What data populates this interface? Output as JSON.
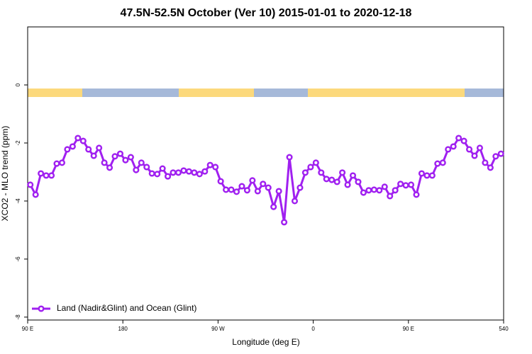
{
  "chart_data": {
    "type": "line",
    "title": "47.5N-52.5N October (Ver 10)   2015-01-01 to 2020-12-18",
    "x_label": "Longitude (deg E)",
    "y_label": "XCO2 - MLO trend (ppm)",
    "x": [
      92.5,
      97.5,
      102.5,
      107.5,
      112.5,
      117.5,
      122.5,
      127.5,
      132.5,
      137.5,
      142.5,
      147.5,
      152.5,
      157.5,
      162.5,
      167.5,
      172.5,
      177.5,
      182.5,
      187.5,
      192.5,
      197.5,
      202.5,
      207.5,
      212.5,
      217.5,
      222.5,
      227.5,
      232.5,
      237.5,
      242.5,
      247.5,
      252.5,
      257.5,
      262.5,
      267.5,
      272.5,
      277.5,
      282.5,
      287.5,
      292.5,
      297.5,
      302.5,
      307.5,
      312.5,
      317.5,
      322.5,
      327.5,
      332.5,
      337.5,
      342.5,
      347.5,
      352.5,
      357.5,
      362.5,
      367.5,
      372.5,
      377.5,
      382.5,
      387.5,
      392.5,
      397.5,
      402.5,
      407.5,
      412.5,
      417.5,
      422.5,
      427.5,
      432.5,
      437.5,
      442.5,
      447.5,
      452.5,
      457.5,
      462.5,
      467.5,
      472.5,
      477.5,
      482.5,
      487.5,
      492.5,
      497.5,
      502.5,
      507.5,
      512.5,
      517.5,
      522.5,
      527.5,
      532.5,
      537.5
    ],
    "series": [
      {
        "name": "Land (Nadir&Glint) and Ocean (Glint)",
        "color": "#a020f0",
        "values": [
          -3.44,
          -3.78,
          -3.05,
          -3.12,
          -3.12,
          -2.71,
          -2.68,
          -2.22,
          -2.12,
          -1.83,
          -1.93,
          -2.22,
          -2.44,
          -2.17,
          -2.68,
          -2.85,
          -2.46,
          -2.37,
          -2.59,
          -2.49,
          -2.93,
          -2.68,
          -2.83,
          -3.05,
          -3.07,
          -2.88,
          -3.15,
          -3.02,
          -3.02,
          -2.95,
          -2.98,
          -3.02,
          -3.07,
          -2.98,
          -2.76,
          -2.83,
          -3.32,
          -3.61,
          -3.61,
          -3.68,
          -3.49,
          -3.63,
          -3.29,
          -3.66,
          -3.41,
          -3.54,
          -4.2,
          -3.66,
          -4.73,
          -2.49,
          -4.0,
          -3.54,
          -3.02,
          -2.83,
          -2.68,
          -3.02,
          -3.24,
          -3.27,
          -3.34,
          -3.02,
          -3.44,
          -3.12,
          -3.34,
          -3.71,
          -3.63,
          -3.61,
          -3.63,
          -3.51,
          -3.83,
          -3.63,
          -3.41,
          -3.46,
          -3.44,
          -3.78,
          -3.05,
          -3.12,
          -3.12,
          -2.71,
          -2.68,
          -2.22,
          -2.12,
          -1.83,
          -1.93,
          -2.22,
          -2.44,
          -2.17,
          -2.68,
          -2.85,
          -2.46,
          -2.37
        ]
      }
    ],
    "xlim": [
      90,
      540
    ],
    "xticks": [
      {
        "value": 90,
        "label": "90 E"
      },
      180,
      {
        "value": 270,
        "label": "90 W"
      },
      {
        "value": 360,
        "label": "0"
      },
      {
        "value": 450,
        "label": "90 E"
      },
      540
    ],
    "ylim": [
      -8.1,
      2
    ],
    "yticks": [
      0,
      -2,
      -4,
      -6,
      -8
    ],
    "legend": "bottom-left"
  }
}
